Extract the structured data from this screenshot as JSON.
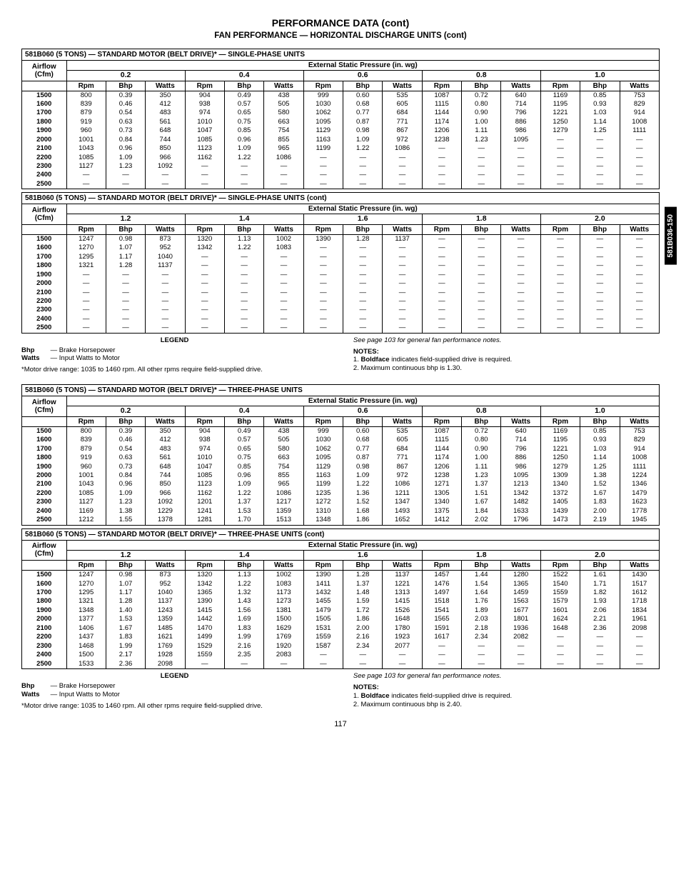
{
  "page_title": "PERFORMANCE DATA (cont)",
  "page_subtitle": "FAN PERFORMANCE — HORIZONTAL DISCHARGE UNITS (cont)",
  "page_number": "117",
  "side_tab": "581B036-150",
  "tables": [
    {
      "title": "581B060 (5 TONS) — STANDARD MOTOR (BELT DRIVE)* — SINGLE-PHASE UNITS",
      "pressures": [
        "0.2",
        "0.4",
        "0.6",
        "0.8",
        "1.0"
      ],
      "airflows": [
        "1500",
        "1600",
        "1700",
        "1800",
        "1900",
        "2000",
        "2100",
        "2200",
        "2300",
        "2400",
        "2500"
      ],
      "rows": [
        [
          "800",
          "0.39",
          "350",
          "904",
          "0.49",
          "438",
          "999",
          "0.60",
          "535",
          "1087",
          "0.72",
          "640",
          "1169",
          "0.85",
          "753"
        ],
        [
          "839",
          "0.46",
          "412",
          "938",
          "0.57",
          "505",
          "1030",
          "0.68",
          "605",
          "1115",
          "0.80",
          "714",
          "1195",
          "0.93",
          "829"
        ],
        [
          "879",
          "0.54",
          "483",
          "974",
          "0.65",
          "580",
          "1062",
          "0.77",
          "684",
          "1144",
          "0.90",
          "796",
          "1221",
          "1.03",
          "914"
        ],
        [
          "919",
          "0.63",
          "561",
          "1010",
          "0.75",
          "663",
          "1095",
          "0.87",
          "771",
          "1174",
          "1.00",
          "886",
          "1250",
          "1.14",
          "1008"
        ],
        [
          "960",
          "0.73",
          "648",
          "1047",
          "0.85",
          "754",
          "1129",
          "0.98",
          "867",
          "1206",
          "1.11",
          "986",
          "1279",
          "1.25",
          "1111"
        ],
        [
          "1001",
          "0.84",
          "744",
          "1085",
          "0.96",
          "855",
          "1163",
          "1.09",
          "972",
          "1238",
          "1.23",
          "1095",
          "—",
          "—",
          "—"
        ],
        [
          "1043",
          "0.96",
          "850",
          "1123",
          "1.09",
          "965",
          "1199",
          "1.22",
          "1086",
          "—",
          "—",
          "—",
          "—",
          "—",
          "—"
        ],
        [
          "1085",
          "1.09",
          "966",
          "1162",
          "1.22",
          "1086",
          "—",
          "—",
          "—",
          "—",
          "—",
          "—",
          "—",
          "—",
          "—"
        ],
        [
          "1127",
          "1.23",
          "1092",
          "—",
          "—",
          "—",
          "—",
          "—",
          "—",
          "—",
          "—",
          "—",
          "—",
          "—",
          "—"
        ],
        [
          "—",
          "—",
          "—",
          "—",
          "—",
          "—",
          "—",
          "—",
          "—",
          "—",
          "—",
          "—",
          "—",
          "—",
          "—"
        ],
        [
          "—",
          "—",
          "—",
          "—",
          "—",
          "—",
          "—",
          "—",
          "—",
          "—",
          "—",
          "—",
          "—",
          "—",
          "—"
        ]
      ]
    },
    {
      "title": "581B060 (5 TONS) — STANDARD MOTOR (BELT DRIVE)* — SINGLE-PHASE UNITS (cont)",
      "pressures": [
        "1.2",
        "1.4",
        "1.6",
        "1.8",
        "2.0"
      ],
      "airflows": [
        "1500",
        "1600",
        "1700",
        "1800",
        "1900",
        "2000",
        "2100",
        "2200",
        "2300",
        "2400",
        "2500"
      ],
      "rows": [
        [
          "1247",
          "0.98",
          "873",
          "1320",
          "1.13",
          "1002",
          "1390",
          "1.28",
          "1137",
          "—",
          "—",
          "—",
          "—",
          "—",
          "—"
        ],
        [
          "1270",
          "1.07",
          "952",
          "1342",
          "1.22",
          "1083",
          "—",
          "—",
          "—",
          "—",
          "—",
          "—",
          "—",
          "—",
          "—"
        ],
        [
          "1295",
          "1.17",
          "1040",
          "—",
          "—",
          "—",
          "—",
          "—",
          "—",
          "—",
          "—",
          "—",
          "—",
          "—",
          "—"
        ],
        [
          "1321",
          "1.28",
          "1137",
          "—",
          "—",
          "—",
          "—",
          "—",
          "—",
          "—",
          "—",
          "—",
          "—",
          "—",
          "—"
        ],
        [
          "—",
          "—",
          "—",
          "—",
          "—",
          "—",
          "—",
          "—",
          "—",
          "—",
          "—",
          "—",
          "—",
          "—",
          "—"
        ],
        [
          "—",
          "—",
          "—",
          "—",
          "—",
          "—",
          "—",
          "—",
          "—",
          "—",
          "—",
          "—",
          "—",
          "—",
          "—"
        ],
        [
          "—",
          "—",
          "—",
          "—",
          "—",
          "—",
          "—",
          "—",
          "—",
          "—",
          "—",
          "—",
          "—",
          "—",
          "—"
        ],
        [
          "—",
          "—",
          "—",
          "—",
          "—",
          "—",
          "—",
          "—",
          "—",
          "—",
          "—",
          "—",
          "—",
          "—",
          "—"
        ],
        [
          "—",
          "—",
          "—",
          "—",
          "—",
          "—",
          "—",
          "—",
          "—",
          "—",
          "—",
          "—",
          "—",
          "—",
          "—"
        ],
        [
          "—",
          "—",
          "—",
          "—",
          "—",
          "—",
          "—",
          "—",
          "—",
          "—",
          "—",
          "—",
          "—",
          "—",
          "—"
        ],
        [
          "—",
          "—",
          "—",
          "—",
          "—",
          "—",
          "—",
          "—",
          "—",
          "—",
          "—",
          "—",
          "—",
          "—",
          "—"
        ]
      ]
    },
    {
      "title": "581B060 (5 TONS) — STANDARD MOTOR (BELT DRIVE)* — THREE-PHASE UNITS",
      "pressures": [
        "0.2",
        "0.4",
        "0.6",
        "0.8",
        "1.0"
      ],
      "airflows": [
        "1500",
        "1600",
        "1700",
        "1800",
        "1900",
        "2000",
        "2100",
        "2200",
        "2300",
        "2400",
        "2500"
      ],
      "rows": [
        [
          "800",
          "0.39",
          "350",
          "904",
          "0.49",
          "438",
          "999",
          "0.60",
          "535",
          "1087",
          "0.72",
          "640",
          "1169",
          "0.85",
          "753"
        ],
        [
          "839",
          "0.46",
          "412",
          "938",
          "0.57",
          "505",
          "1030",
          "0.68",
          "605",
          "1115",
          "0.80",
          "714",
          "1195",
          "0.93",
          "829"
        ],
        [
          "879",
          "0.54",
          "483",
          "974",
          "0.65",
          "580",
          "1062",
          "0.77",
          "684",
          "1144",
          "0.90",
          "796",
          "1221",
          "1.03",
          "914"
        ],
        [
          "919",
          "0.63",
          "561",
          "1010",
          "0.75",
          "663",
          "1095",
          "0.87",
          "771",
          "1174",
          "1.00",
          "886",
          "1250",
          "1.14",
          "1008"
        ],
        [
          "960",
          "0.73",
          "648",
          "1047",
          "0.85",
          "754",
          "1129",
          "0.98",
          "867",
          "1206",
          "1.11",
          "986",
          "1279",
          "1.25",
          "1111"
        ],
        [
          "1001",
          "0.84",
          "744",
          "1085",
          "0.96",
          "855",
          "1163",
          "1.09",
          "972",
          "1238",
          "1.23",
          "1095",
          "1309",
          "1.38",
          "1224"
        ],
        [
          "1043",
          "0.96",
          "850",
          "1123",
          "1.09",
          "965",
          "1199",
          "1.22",
          "1086",
          "1271",
          "1.37",
          "1213",
          "1340",
          "1.52",
          "1346"
        ],
        [
          "1085",
          "1.09",
          "966",
          "1162",
          "1.22",
          "1086",
          "1235",
          "1.36",
          "1211",
          "1305",
          "1.51",
          "1342",
          "1372",
          "1.67",
          "1479"
        ],
        [
          "1127",
          "1.23",
          "1092",
          "1201",
          "1.37",
          "1217",
          "1272",
          "1.52",
          "1347",
          "1340",
          "1.67",
          "1482",
          "1405",
          "1.83",
          "1623"
        ],
        [
          "1169",
          "1.38",
          "1229",
          "1241",
          "1.53",
          "1359",
          "1310",
          "1.68",
          "1493",
          "1375",
          "1.84",
          "1633",
          "1439",
          "2.00",
          "1778"
        ],
        [
          "1212",
          "1.55",
          "1378",
          "1281",
          "1.70",
          "1513",
          "1348",
          "1.86",
          "1652",
          "1412",
          "2.02",
          "1796",
          "1473",
          "2.19",
          "1945"
        ]
      ]
    },
    {
      "title": "581B060 (5 TONS) — STANDARD MOTOR (BELT DRIVE)* — THREE-PHASE UNITS (cont)",
      "pressures": [
        "1.2",
        "1.4",
        "1.6",
        "1.8",
        "2.0"
      ],
      "airflows": [
        "1500",
        "1600",
        "1700",
        "1800",
        "1900",
        "2000",
        "2100",
        "2200",
        "2300",
        "2400",
        "2500"
      ],
      "rows": [
        [
          "1247",
          "0.98",
          "873",
          "1320",
          "1.13",
          "1002",
          "1390",
          "1.28",
          "1137",
          "1457",
          "1.44",
          "1280",
          "1522",
          "1.61",
          "1430"
        ],
        [
          "1270",
          "1.07",
          "952",
          "1342",
          "1.22",
          "1083",
          "1411",
          "1.37",
          "1221",
          "1476",
          "1.54",
          "1365",
          "1540",
          "1.71",
          "1517"
        ],
        [
          "1295",
          "1.17",
          "1040",
          "1365",
          "1.32",
          "1173",
          "1432",
          "1.48",
          "1313",
          "1497",
          "1.64",
          "1459",
          "1559",
          "1.82",
          "1612"
        ],
        [
          "1321",
          "1.28",
          "1137",
          "1390",
          "1.43",
          "1273",
          "1455",
          "1.59",
          "1415",
          "1518",
          "1.76",
          "1563",
          "1579",
          "1.93",
          "1718"
        ],
        [
          "1348",
          "1.40",
          "1243",
          "1415",
          "1.56",
          "1381",
          "1479",
          "1.72",
          "1526",
          "1541",
          "1.89",
          "1677",
          "1601",
          "2.06",
          "1834"
        ],
        [
          "1377",
          "1.53",
          "1359",
          "1442",
          "1.69",
          "1500",
          "1505",
          "1.86",
          "1648",
          "1565",
          "2.03",
          "1801",
          "1624",
          "2.21",
          "1961"
        ],
        [
          "1406",
          "1.67",
          "1485",
          "1470",
          "1.83",
          "1629",
          "1531",
          "2.00",
          "1780",
          "1591",
          "2.18",
          "1936",
          "1648",
          "2.36",
          "2098"
        ],
        [
          "1437",
          "1.83",
          "1621",
          "1499",
          "1.99",
          "1769",
          "1559",
          "2.16",
          "1923",
          "1617",
          "2.34",
          "2082",
          "—",
          "—",
          "—"
        ],
        [
          "1468",
          "1.99",
          "1769",
          "1529",
          "2.16",
          "1920",
          "1587",
          "2.34",
          "2077",
          "—",
          "—",
          "—",
          "—",
          "—",
          "—"
        ],
        [
          "1500",
          "2.17",
          "1928",
          "1559",
          "2.35",
          "2083",
          "—",
          "—",
          "—",
          "—",
          "—",
          "—",
          "—",
          "—",
          "—"
        ],
        [
          "1533",
          "2.36",
          "2098",
          "—",
          "—",
          "—",
          "—",
          "—",
          "—",
          "—",
          "—",
          "—",
          "—",
          "—",
          "—"
        ]
      ]
    }
  ],
  "esp_header": "External Static Pressure (in. wg)",
  "airflow_header": "Airflow\n(Cfm)",
  "sub_headers": [
    "Rpm",
    "Bhp",
    "Watts"
  ],
  "legend": {
    "title": "LEGEND",
    "bhp": "Brake Horsepower",
    "watts": "Input Watts to Motor",
    "footnote": "*Motor drive range: 1035 to 1460 rpm. All other rpms require field-supplied drive."
  },
  "notes_blocks": [
    {
      "see": "See page 103 for general fan performance notes.",
      "title": "NOTES:",
      "items": [
        "1. ",
        " indicates field-supplied drive is required.",
        "2. Maximum continuous bhp is 1.30."
      ],
      "bold_word": "Boldface"
    },
    {
      "see": "See page 103 for general fan performance notes.",
      "title": "NOTES:",
      "items": [
        "1. ",
        " indicates field-supplied drive is required.",
        "2. Maximum continuous bhp is 2.40."
      ],
      "bold_word": "Boldface"
    }
  ]
}
